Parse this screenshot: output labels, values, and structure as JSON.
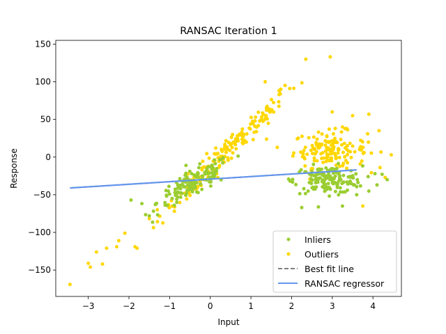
{
  "chart_data": {
    "type": "scatter",
    "title": "RANSAC Iteration 1",
    "xlabel": "Input",
    "ylabel": "Response",
    "xlim": [
      -3.8,
      4.7
    ],
    "ylim": [
      -185,
      155
    ],
    "xticks": [
      -3,
      -2,
      -1,
      0,
      1,
      2,
      3,
      4
    ],
    "yticks": [
      -150,
      -100,
      -50,
      0,
      50,
      100,
      150
    ],
    "grid": false,
    "legend_position": "lower-right",
    "legend": [
      {
        "label": "Inliers",
        "kind": "marker",
        "color": "#9acd32"
      },
      {
        "label": "Outliers",
        "kind": "marker",
        "color": "#ffd700"
      },
      {
        "label": "Best fit line",
        "kind": "dashed-line",
        "color": "#808080"
      },
      {
        "label": "RANSAC regressor",
        "kind": "line",
        "color": "#6495ed"
      }
    ],
    "series": [
      {
        "label": "Inliers",
        "color": "#9acd32",
        "clusters": [
          {
            "count": 150,
            "x_mean": -0.4,
            "x_sd": 0.45,
            "y_base": -35,
            "y_slope": 28,
            "y_sd": 9
          },
          {
            "count": 160,
            "x_mean": 2.9,
            "x_sd": 0.42,
            "y_base": -30,
            "y_slope": 0,
            "y_sd": 9
          }
        ],
        "points": [
          [
            -1.95,
            -57
          ],
          [
            -1.5,
            -78
          ],
          [
            -1.35,
            -63
          ],
          [
            4.05,
            -22
          ],
          [
            4.1,
            -37
          ],
          [
            4.35,
            -30
          ],
          [
            3.25,
            -65
          ],
          [
            2.25,
            -67
          ],
          [
            3.6,
            -50
          ]
        ]
      },
      {
        "label": "Outliers",
        "color": "#ffd700",
        "clusters": [
          {
            "count": 170,
            "x_mean": 0.45,
            "x_sd": 0.85,
            "y_base": 10,
            "y_slope": 52,
            "y_sd": 9
          },
          {
            "count": 150,
            "x_mean": 2.95,
            "x_sd": 0.45,
            "y_base": 10,
            "y_slope": 0,
            "y_sd": 12
          }
        ],
        "points": [
          [
            -3.45,
            -169
          ],
          [
            -3.0,
            -141
          ],
          [
            -2.95,
            -146
          ],
          [
            -2.8,
            -126
          ],
          [
            -2.65,
            -142
          ],
          [
            -2.55,
            -121
          ],
          [
            -2.3,
            -119
          ],
          [
            -2.25,
            -111
          ],
          [
            -2.1,
            -101
          ],
          [
            -1.85,
            -119
          ],
          [
            -1.8,
            -121
          ],
          [
            2.35,
            130
          ],
          [
            2.95,
            133
          ],
          [
            3.5,
            55
          ],
          [
            3.0,
            60
          ],
          [
            2.65,
            -20
          ],
          [
            3.25,
            40
          ],
          [
            4.15,
            35
          ],
          [
            4.45,
            3
          ],
          [
            4.3,
            -27
          ],
          [
            3.9,
            57
          ],
          [
            2.45,
            -29
          ],
          [
            3.75,
            -65
          ],
          [
            1.35,
            100
          ]
        ]
      }
    ],
    "best_fit_line": {
      "x": [
        -3.45,
        3.6
      ],
      "y": [
        -41,
        -17
      ]
    },
    "ransac_line": {
      "x": [
        -3.45,
        3.6
      ],
      "y": [
        -41,
        -17
      ]
    }
  }
}
